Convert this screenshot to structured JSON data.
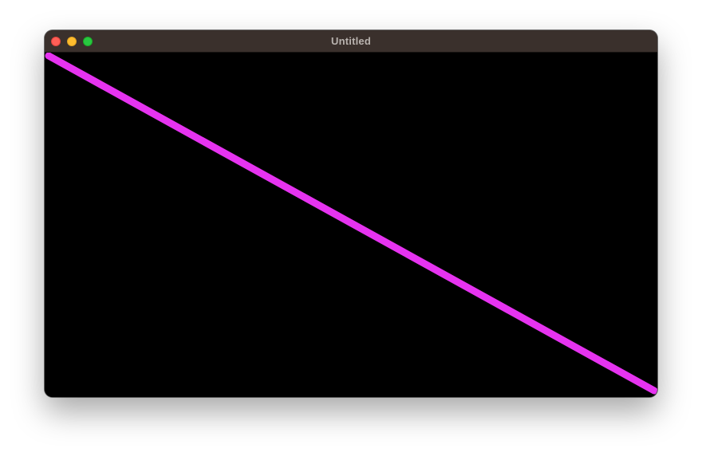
{
  "window": {
    "title": "Untitled",
    "controls": {
      "close": "close-icon",
      "minimize": "minimize-icon",
      "zoom": "zoom-icon"
    }
  },
  "canvas": {
    "background_color": "#000000",
    "line_color": "#e633f0"
  }
}
